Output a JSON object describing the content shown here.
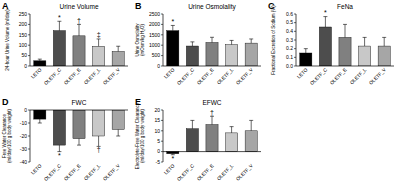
{
  "chart_data": [
    {
      "type": "bar",
      "label": "A",
      "title": "Urine Volume",
      "y_label": [
        "24-hour Urine Volume (ml/day)"
      ],
      "categories": [
        "LETO",
        "OLETF_C",
        "OLETF_E",
        "OLETF_L",
        "OLETF_V"
      ],
      "values": [
        25,
        170,
        145,
        95,
        70
      ],
      "errors": [
        8,
        45,
        55,
        35,
        25
      ],
      "colors": [
        "#000000",
        "#4d4d4d",
        "#808080",
        "#c8c8c8",
        "#a6a6a6"
      ],
      "ylim": [
        0,
        250
      ],
      "yticks": [
        0,
        50,
        100,
        150,
        200,
        250
      ],
      "annotations": [
        {
          "category": "OLETF_C",
          "text": "*"
        },
        {
          "category": "OLETF_E",
          "text": "†"
        },
        {
          "category": "OLETF_L",
          "text": "‡"
        }
      ]
    },
    {
      "type": "bar",
      "label": "B",
      "title": "Urine Osmolality",
      "y_label": [
        "Urine Osmolality",
        "(mOsm/kg H₂O)"
      ],
      "categories": [
        "LETO",
        "OLETF_C",
        "OLETF_E",
        "OLETF_L",
        "OLETF_V"
      ],
      "values": [
        1700,
        960,
        1130,
        1030,
        1100
      ],
      "errors": [
        250,
        200,
        250,
        200,
        200
      ],
      "colors": [
        "#000000",
        "#4d4d4d",
        "#808080",
        "#c8c8c8",
        "#a6a6a6"
      ],
      "ylim": [
        0,
        2500
      ],
      "yticks": [
        0,
        500,
        1000,
        1500,
        2000,
        2500
      ],
      "annotations": [
        {
          "category": "LETO",
          "text": "*"
        }
      ]
    },
    {
      "type": "bar",
      "label": "C",
      "title": "FeNa",
      "y_label": [
        "Fractional Excretion of Sodium (%)"
      ],
      "categories": [
        "LETO",
        "OLETF_C",
        "OLETF_E",
        "OLETF_L",
        "OLETF_V"
      ],
      "values": [
        0.15,
        0.45,
        0.33,
        0.23,
        0.23
      ],
      "errors": [
        0.05,
        0.12,
        0.15,
        0.1,
        0.1
      ],
      "colors": [
        "#000000",
        "#4d4d4d",
        "#808080",
        "#c8c8c8",
        "#a6a6a6"
      ],
      "ylim": [
        0,
        0.6
      ],
      "yticks": [
        {
          "value": 0,
          "label": "0.0"
        },
        0.1,
        0.2,
        0.3,
        0.4,
        0.5,
        0.6
      ],
      "annotations": [
        {
          "category": "OLETF_C",
          "text": "*"
        }
      ]
    },
    {
      "type": "bar",
      "label": "D",
      "title": "FWC",
      "y_label": [
        "Free Water Clearance",
        "(ml/day/100 g body weight)"
      ],
      "categories": [
        "LETO",
        "OLETF_C",
        "OLETF_E",
        "OLETF_L",
        "OLETF_V"
      ],
      "values": [
        -7,
        -27,
        -22,
        -20,
        -15
      ],
      "errors": [
        3,
        5,
        5,
        8,
        5
      ],
      "colors": [
        "#000000",
        "#4d4d4d",
        "#808080",
        "#c8c8c8",
        "#a6a6a6"
      ],
      "ylim": [
        -40,
        0
      ],
      "yticks": [
        -40,
        -30,
        -20,
        -10,
        0
      ],
      "annotations": [
        {
          "category": "OLETF_C",
          "text": "*"
        },
        {
          "category": "OLETF_L",
          "text": "†"
        }
      ]
    },
    {
      "type": "bar",
      "label": "E",
      "title": "EFWC",
      "y_label": [
        "Electrolyte-Free Water Clearance",
        "(ml/day/100 g body weight)"
      ],
      "categories": [
        "LETO",
        "OLETF_C",
        "OLETF_E",
        "OLETF_L",
        "OLETF_V"
      ],
      "values": [
        -1,
        11,
        13,
        9,
        10
      ],
      "errors": [
        0.5,
        4,
        4,
        3,
        5
      ],
      "colors": [
        "#000000",
        "#4d4d4d",
        "#808080",
        "#c8c8c8",
        "#a6a6a6"
      ],
      "ylim": [
        -5,
        20
      ],
      "yticks": [
        -5,
        0,
        5,
        10,
        15,
        20
      ],
      "annotations": [
        {
          "category": "LETO",
          "text": "*"
        },
        {
          "category": "OLETF_E",
          "text": "†"
        }
      ]
    }
  ]
}
